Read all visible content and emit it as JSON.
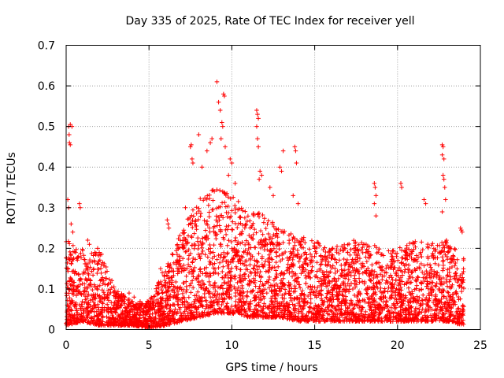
{
  "chart_data": {
    "type": "scatter",
    "title": "Day 335 of 2025, Rate Of TEC Index for receiver yell",
    "xlabel": "GPS time / hours",
    "ylabel": "ROTI / TECUs",
    "xlim": [
      0,
      25
    ],
    "ylim": [
      0,
      0.7
    ],
    "xticks": [
      0,
      5,
      10,
      15,
      20,
      25
    ],
    "yticks": [
      0,
      0.1,
      0.2,
      0.3,
      0.4,
      0.5,
      0.6,
      0.7
    ],
    "xtick_labels": [
      "0",
      "5",
      "10",
      "15",
      "20",
      "25"
    ],
    "ytick_labels": [
      "0",
      "0.1",
      "0.2",
      "0.3",
      "0.4",
      "0.5",
      "0.6",
      "0.7"
    ],
    "grid": true,
    "marker": "+",
    "color": "#ff0000",
    "series": [
      {
        "name": "ROTI",
        "points": [
          [
            0.15,
            0.5
          ],
          [
            0.25,
            0.505
          ],
          [
            0.35,
            0.5
          ],
          [
            0.2,
            0.46
          ],
          [
            0.25,
            0.455
          ],
          [
            0.18,
            0.48
          ],
          [
            0.1,
            0.32
          ],
          [
            0.15,
            0.3
          ],
          [
            0.8,
            0.31
          ],
          [
            0.85,
            0.3
          ],
          [
            0.3,
            0.26
          ],
          [
            0.4,
            0.24
          ],
          [
            1.3,
            0.22
          ],
          [
            1.4,
            0.21
          ],
          [
            1.9,
            0.2
          ],
          [
            2.0,
            0.19
          ],
          [
            1.7,
            0.17
          ],
          [
            3.0,
            0.08
          ],
          [
            3.8,
            0.09
          ],
          [
            4.1,
            0.08
          ],
          [
            5.1,
            0.07
          ],
          [
            5.5,
            0.09
          ],
          [
            6.1,
            0.27
          ],
          [
            6.15,
            0.26
          ],
          [
            6.2,
            0.25
          ],
          [
            5.7,
            0.15
          ],
          [
            5.8,
            0.14
          ],
          [
            7.5,
            0.45
          ],
          [
            7.55,
            0.455
          ],
          [
            7.6,
            0.42
          ],
          [
            7.65,
            0.41
          ],
          [
            7.2,
            0.3
          ],
          [
            8.0,
            0.48
          ],
          [
            8.2,
            0.4
          ],
          [
            8.5,
            0.44
          ],
          [
            8.7,
            0.46
          ],
          [
            8.8,
            0.47
          ],
          [
            9.1,
            0.61
          ],
          [
            9.3,
            0.54
          ],
          [
            9.2,
            0.56
          ],
          [
            9.4,
            0.51
          ],
          [
            9.5,
            0.58
          ],
          [
            9.55,
            0.575
          ],
          [
            9.45,
            0.5
          ],
          [
            9.35,
            0.47
          ],
          [
            9.6,
            0.45
          ],
          [
            9.9,
            0.42
          ],
          [
            10.0,
            0.41
          ],
          [
            9.8,
            0.38
          ],
          [
            10.2,
            0.36
          ],
          [
            11.5,
            0.54
          ],
          [
            11.55,
            0.53
          ],
          [
            11.6,
            0.52
          ],
          [
            11.5,
            0.5
          ],
          [
            11.55,
            0.47
          ],
          [
            11.6,
            0.45
          ],
          [
            11.7,
            0.39
          ],
          [
            11.8,
            0.38
          ],
          [
            11.65,
            0.37
          ],
          [
            12.3,
            0.35
          ],
          [
            12.5,
            0.33
          ],
          [
            13.1,
            0.44
          ],
          [
            12.9,
            0.4
          ],
          [
            13.0,
            0.39
          ],
          [
            13.8,
            0.45
          ],
          [
            13.85,
            0.44
          ],
          [
            13.9,
            0.41
          ],
          [
            13.7,
            0.33
          ],
          [
            14.0,
            0.31
          ],
          [
            18.6,
            0.36
          ],
          [
            18.65,
            0.35
          ],
          [
            18.7,
            0.33
          ],
          [
            18.6,
            0.31
          ],
          [
            18.7,
            0.28
          ],
          [
            20.2,
            0.36
          ],
          [
            20.25,
            0.35
          ],
          [
            21.6,
            0.32
          ],
          [
            21.7,
            0.31
          ],
          [
            22.7,
            0.455
          ],
          [
            22.75,
            0.45
          ],
          [
            22.7,
            0.43
          ],
          [
            22.8,
            0.42
          ],
          [
            22.75,
            0.38
          ],
          [
            22.8,
            0.37
          ],
          [
            22.85,
            0.35
          ],
          [
            22.9,
            0.32
          ],
          [
            22.7,
            0.29
          ],
          [
            23.8,
            0.25
          ],
          [
            23.85,
            0.245
          ],
          [
            23.9,
            0.24
          ]
        ],
        "density_envelope": {
          "description": "bulk of points, per-hour approximate min/max ROTI",
          "hours": [
            0,
            1,
            2,
            3,
            4,
            5,
            6,
            7,
            8,
            9,
            10,
            11,
            12,
            13,
            14,
            15,
            16,
            17,
            18,
            19,
            20,
            21,
            22,
            23,
            24
          ],
          "low": [
            0.01,
            0.02,
            0.01,
            0.01,
            0.01,
            0.005,
            0.01,
            0.02,
            0.03,
            0.04,
            0.04,
            0.03,
            0.03,
            0.03,
            0.02,
            0.02,
            0.02,
            0.02,
            0.02,
            0.02,
            0.02,
            0.02,
            0.02,
            0.02,
            0.01
          ],
          "high": [
            0.22,
            0.2,
            0.2,
            0.1,
            0.07,
            0.07,
            0.15,
            0.25,
            0.32,
            0.35,
            0.33,
            0.3,
            0.28,
            0.25,
            0.23,
            0.22,
            0.2,
            0.22,
            0.22,
            0.2,
            0.2,
            0.22,
            0.22,
            0.22,
            0.18
          ]
        }
      }
    ]
  }
}
